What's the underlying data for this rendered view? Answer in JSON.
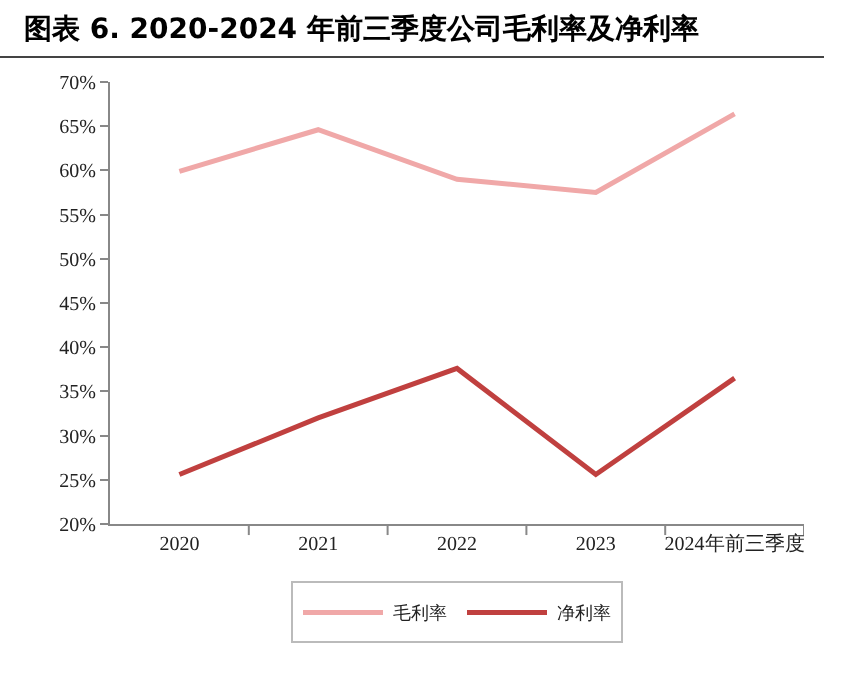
{
  "chart_data": {
    "type": "line",
    "title": "图表 6. 2020-2024 年前三季度公司毛利率及净利率",
    "categories": [
      "2020",
      "2021",
      "2022",
      "2023",
      "2024年前三季度"
    ],
    "series": [
      {
        "name": "毛利率",
        "color": "#f0a8a8",
        "values": [
          59.9,
          64.6,
          59.0,
          57.5,
          66.4
        ]
      },
      {
        "name": "净利率",
        "color": "#c0403f",
        "values": [
          25.6,
          32.0,
          37.6,
          25.6,
          36.5
        ]
      }
    ],
    "ylim": [
      20,
      70
    ],
    "yticks": [
      {
        "value": 20,
        "label": "20%"
      },
      {
        "value": 25,
        "label": "25%"
      },
      {
        "value": 30,
        "label": "30%"
      },
      {
        "value": 35,
        "label": "35%"
      },
      {
        "value": 40,
        "label": "40%"
      },
      {
        "value": 45,
        "label": "45%"
      },
      {
        "value": 50,
        "label": "50%"
      },
      {
        "value": 55,
        "label": "55%"
      },
      {
        "value": 60,
        "label": "60%"
      },
      {
        "value": 65,
        "label": "65%"
      },
      {
        "value": 70,
        "label": "70%"
      }
    ],
    "grid": false,
    "legend": "bottom",
    "marker": "none",
    "line_style": "solid"
  }
}
